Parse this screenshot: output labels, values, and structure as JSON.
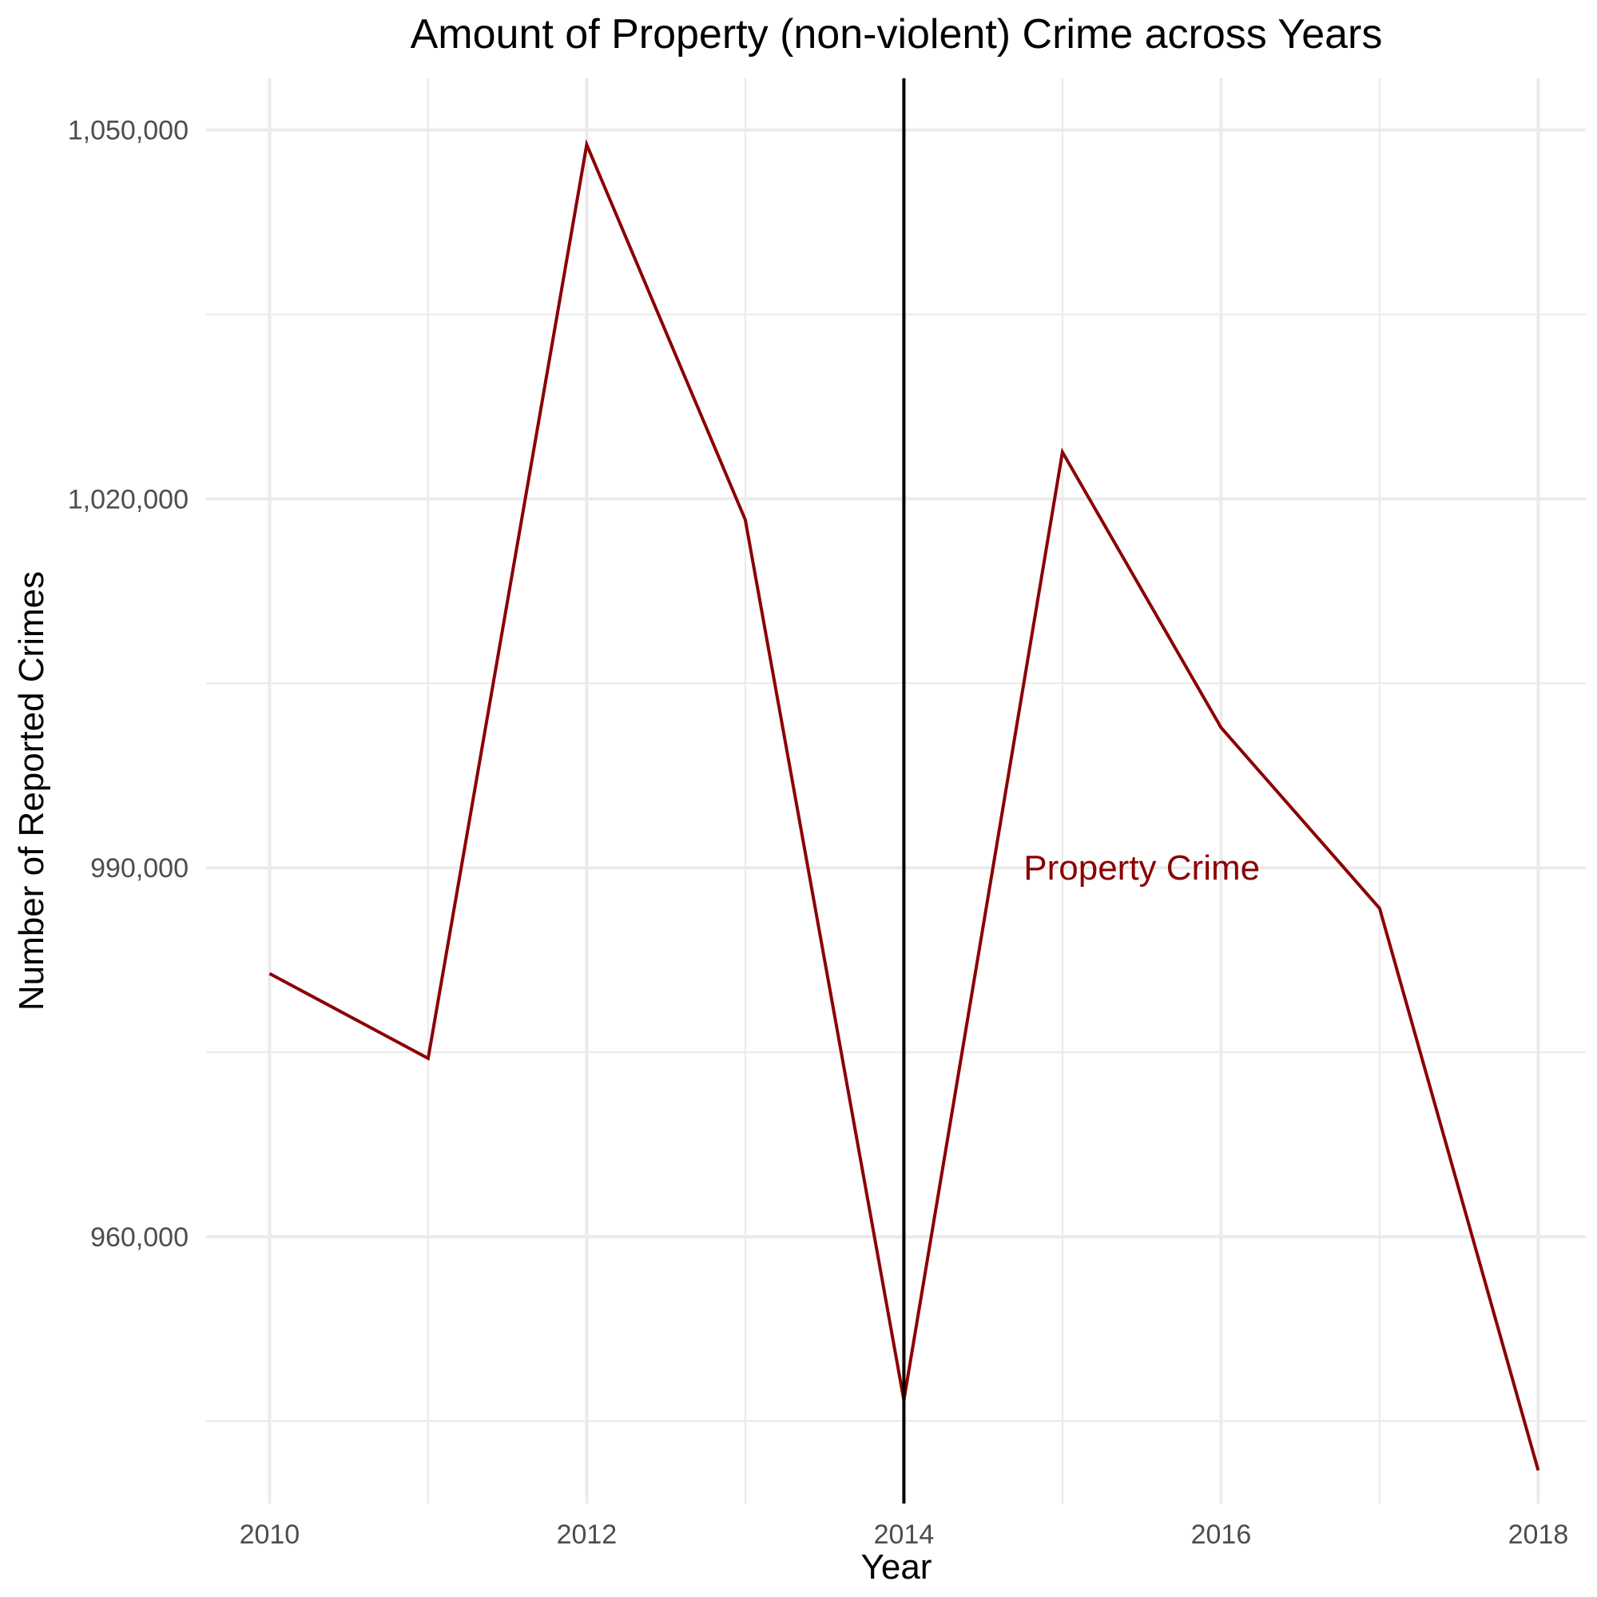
{
  "chart_data": {
    "type": "line",
    "title": "Amount of Property (non-violent) Crime across Years",
    "xlabel": "Year",
    "ylabel": "Number of Reported Crimes",
    "x_ticks": [
      "2010",
      "2012",
      "2014",
      "2016",
      "2018"
    ],
    "y_ticks": [
      "960,000",
      "990,000",
      "1,020,000",
      "1,050,000"
    ],
    "y_tick_values": [
      960000,
      990000,
      1020000,
      1050000
    ],
    "xlim": [
      2009.6,
      2018.3
    ],
    "ylim": [
      938300,
      1054200
    ],
    "grid": true,
    "legend": "none",
    "series": [
      {
        "x": [
          2010,
          2011,
          2012,
          2013,
          2014,
          2015,
          2016,
          2017,
          2018
        ],
        "y": [
          981400,
          974500,
          1048800,
          1018300,
          946700,
          1023800,
          1001400,
          986700,
          941000
        ],
        "color": "#8b0000"
      }
    ],
    "reference_line": {
      "x": 2014,
      "color": "#000000"
    },
    "annotation": {
      "text": "Property Crime",
      "x": 2015.5,
      "y": 990000,
      "color": "#8b0000"
    }
  }
}
